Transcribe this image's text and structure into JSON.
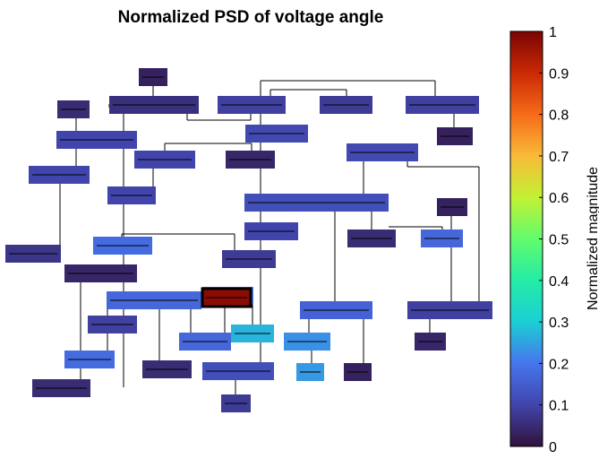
{
  "chart_data": {
    "type": "heatmap",
    "title": "Normalized PSD of voltage angle",
    "colorbar": {
      "label": "Normalized magnitude",
      "range": [
        0,
        1
      ],
      "ticks": [
        "0",
        "0.1",
        "0.2",
        "0.3",
        "0.4",
        "0.5",
        "0.6",
        "0.7",
        "0.8",
        "0.9",
        "1"
      ],
      "colormap": "turbo"
    },
    "buses": [
      {
        "id": "b01",
        "value": 0.03
      },
      {
        "id": "b02",
        "value": 0.06
      },
      {
        "id": "b03",
        "value": 0.09
      },
      {
        "id": "b04",
        "value": 0.08
      },
      {
        "id": "b05",
        "value": 0.09
      },
      {
        "id": "b06",
        "value": 0.05
      },
      {
        "id": "b07",
        "value": 0.03
      },
      {
        "id": "b08",
        "value": 0.11
      },
      {
        "id": "b09",
        "value": 0.1
      },
      {
        "id": "b10",
        "value": 0.1
      },
      {
        "id": "b11",
        "value": 0.04
      },
      {
        "id": "b12",
        "value": 0.11
      },
      {
        "id": "b13",
        "value": 0.1
      },
      {
        "id": "b14",
        "value": 0.1
      },
      {
        "id": "b15",
        "value": 0.03
      },
      {
        "id": "b16",
        "value": 0.12
      },
      {
        "id": "b17",
        "value": 0.1
      },
      {
        "id": "b18",
        "value": 0.05
      },
      {
        "id": "b19",
        "value": 0.17
      },
      {
        "id": "b20",
        "value": 0.18
      },
      {
        "id": "b21",
        "value": 0.08
      },
      {
        "id": "b22",
        "value": 0.07
      },
      {
        "id": "b23",
        "value": 0.04
      },
      {
        "id": "b24",
        "value": 0.17
      },
      {
        "id": "b25",
        "value": 0.2
      },
      {
        "id": "b26",
        "value": 0.98
      },
      {
        "id": "b27",
        "value": 0.09
      },
      {
        "id": "b28",
        "value": 0.09
      },
      {
        "id": "b29",
        "value": 0.17
      },
      {
        "id": "b30",
        "value": 0.27
      },
      {
        "id": "b31",
        "value": 0.23
      },
      {
        "id": "b32",
        "value": 0.04
      },
      {
        "id": "b33",
        "value": 0.05
      },
      {
        "id": "b34",
        "value": 0.18
      },
      {
        "id": "b35",
        "value": 0.12
      },
      {
        "id": "b36",
        "value": 0.24
      },
      {
        "id": "b37",
        "value": 0.03
      },
      {
        "id": "b38",
        "value": 0.05
      },
      {
        "id": "b39",
        "value": 0.08
      },
      {
        "id": "b40",
        "value": 0.16
      }
    ]
  }
}
